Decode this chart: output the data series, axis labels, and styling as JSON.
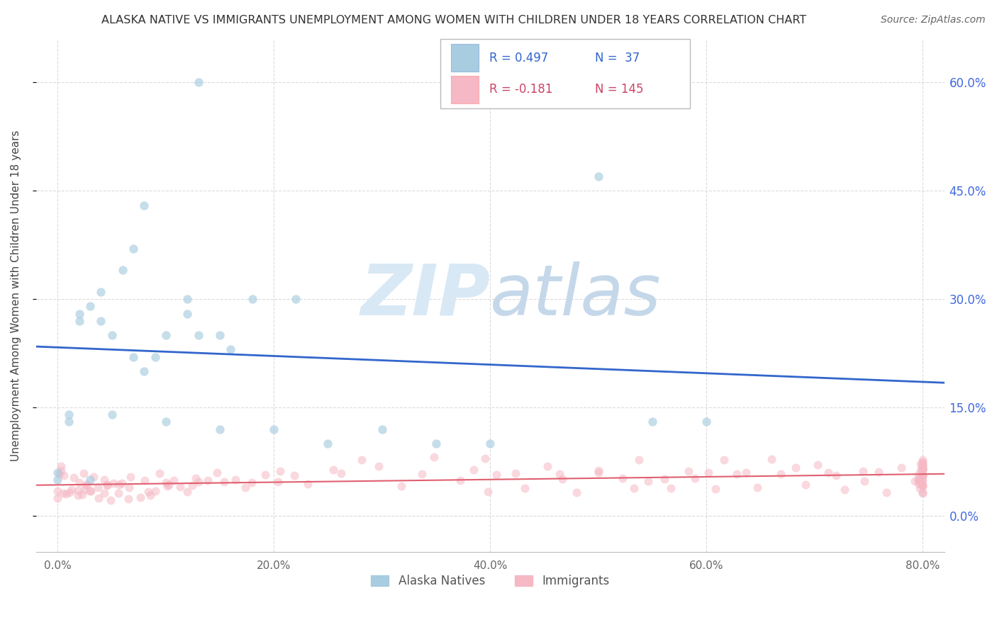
{
  "title": "ALASKA NATIVE VS IMMIGRANTS UNEMPLOYMENT AMONG WOMEN WITH CHILDREN UNDER 18 YEARS CORRELATION CHART",
  "source": "Source: ZipAtlas.com",
  "ylabel": "Unemployment Among Women with Children Under 18 years",
  "ytick_labels": [
    "0.0%",
    "15.0%",
    "30.0%",
    "45.0%",
    "60.0%"
  ],
  "ytick_values": [
    0.0,
    0.15,
    0.3,
    0.45,
    0.6
  ],
  "xtick_values": [
    0.0,
    0.2,
    0.4,
    0.6,
    0.8
  ],
  "xlim": [
    -0.02,
    0.82
  ],
  "ylim": [
    -0.05,
    0.66
  ],
  "watermark": "ZIPAtlas",
  "alaska_color": "#a8cce0",
  "immigrant_color": "#f5b8c4",
  "alaska_line_color": "#3366cc",
  "immigrant_line_color": "#e06070",
  "background_color": "#ffffff",
  "grid_color": "#cccccc",
  "title_color": "#333333",
  "right_tick_color": "#4169E1",
  "legend_blue_color": "#3366cc",
  "legend_pink_color": "#cc4466",
  "alaska_natives_x": [
    0.0,
    0.0,
    0.01,
    0.01,
    0.02,
    0.02,
    0.03,
    0.03,
    0.04,
    0.04,
    0.05,
    0.05,
    0.06,
    0.07,
    0.07,
    0.08,
    0.08,
    0.09,
    0.1,
    0.1,
    0.12,
    0.12,
    0.13,
    0.15,
    0.15,
    0.16,
    0.18,
    0.2,
    0.22,
    0.25,
    0.3,
    0.35,
    0.4,
    0.5,
    0.55,
    0.6,
    0.13
  ],
  "alaska_natives_y": [
    0.05,
    0.06,
    0.14,
    0.13,
    0.27,
    0.28,
    0.29,
    0.05,
    0.27,
    0.31,
    0.25,
    0.14,
    0.34,
    0.37,
    0.22,
    0.43,
    0.2,
    0.22,
    0.25,
    0.13,
    0.3,
    0.28,
    0.25,
    0.25,
    0.12,
    0.23,
    0.3,
    0.12,
    0.3,
    0.1,
    0.12,
    0.1,
    0.1,
    0.47,
    0.13,
    0.13,
    0.6
  ],
  "immigrants_x": [
    0.0,
    0.0,
    0.0,
    0.0,
    0.0,
    0.01,
    0.01,
    0.01,
    0.01,
    0.01,
    0.01,
    0.02,
    0.02,
    0.02,
    0.02,
    0.02,
    0.02,
    0.03,
    0.03,
    0.03,
    0.03,
    0.03,
    0.04,
    0.04,
    0.04,
    0.04,
    0.05,
    0.05,
    0.05,
    0.05,
    0.06,
    0.06,
    0.06,
    0.07,
    0.07,
    0.07,
    0.08,
    0.08,
    0.08,
    0.09,
    0.09,
    0.09,
    0.1,
    0.1,
    0.1,
    0.11,
    0.11,
    0.12,
    0.12,
    0.13,
    0.13,
    0.14,
    0.15,
    0.15,
    0.16,
    0.17,
    0.18,
    0.19,
    0.2,
    0.21,
    0.22,
    0.23,
    0.25,
    0.26,
    0.28,
    0.3,
    0.32,
    0.34,
    0.35,
    0.37,
    0.38,
    0.4,
    0.4,
    0.41,
    0.42,
    0.43,
    0.45,
    0.46,
    0.47,
    0.48,
    0.5,
    0.5,
    0.52,
    0.53,
    0.54,
    0.55,
    0.56,
    0.57,
    0.58,
    0.59,
    0.6,
    0.61,
    0.62,
    0.63,
    0.64,
    0.65,
    0.66,
    0.67,
    0.68,
    0.69,
    0.7,
    0.71,
    0.72,
    0.73,
    0.74,
    0.75,
    0.76,
    0.77,
    0.78,
    0.79,
    0.8,
    0.8,
    0.8,
    0.8,
    0.8,
    0.8,
    0.8,
    0.8,
    0.8,
    0.8,
    0.8,
    0.8,
    0.8,
    0.8,
    0.8,
    0.8,
    0.8,
    0.8,
    0.8,
    0.8,
    0.8,
    0.8,
    0.8,
    0.8,
    0.8,
    0.8,
    0.8,
    0.8,
    0.8,
    0.8,
    0.8,
    0.8
  ],
  "immigrants_y": [
    0.05,
    0.04,
    0.06,
    0.03,
    0.07,
    0.03,
    0.04,
    0.05,
    0.06,
    0.04,
    0.03,
    0.02,
    0.03,
    0.04,
    0.05,
    0.03,
    0.04,
    0.03,
    0.04,
    0.05,
    0.04,
    0.03,
    0.03,
    0.04,
    0.05,
    0.03,
    0.04,
    0.05,
    0.03,
    0.04,
    0.03,
    0.04,
    0.05,
    0.04,
    0.05,
    0.03,
    0.04,
    0.05,
    0.03,
    0.05,
    0.04,
    0.03,
    0.04,
    0.05,
    0.04,
    0.05,
    0.04,
    0.05,
    0.04,
    0.05,
    0.04,
    0.05,
    0.06,
    0.04,
    0.05,
    0.04,
    0.05,
    0.06,
    0.05,
    0.06,
    0.05,
    0.04,
    0.06,
    0.05,
    0.07,
    0.06,
    0.05,
    0.06,
    0.08,
    0.05,
    0.06,
    0.07,
    0.04,
    0.06,
    0.05,
    0.04,
    0.07,
    0.05,
    0.06,
    0.04,
    0.07,
    0.05,
    0.06,
    0.04,
    0.07,
    0.05,
    0.06,
    0.04,
    0.07,
    0.05,
    0.06,
    0.04,
    0.07,
    0.05,
    0.06,
    0.04,
    0.07,
    0.05,
    0.06,
    0.04,
    0.07,
    0.05,
    0.06,
    0.04,
    0.07,
    0.05,
    0.06,
    0.04,
    0.07,
    0.05,
    0.06,
    0.04,
    0.07,
    0.05,
    0.06,
    0.04,
    0.07,
    0.05,
    0.06,
    0.04,
    0.07,
    0.05,
    0.06,
    0.04,
    0.07,
    0.05,
    0.06,
    0.04,
    0.07,
    0.05,
    0.06,
    0.04,
    0.07,
    0.05,
    0.06,
    0.04,
    0.07,
    0.05,
    0.06,
    0.04,
    0.07,
    0.05
  ]
}
